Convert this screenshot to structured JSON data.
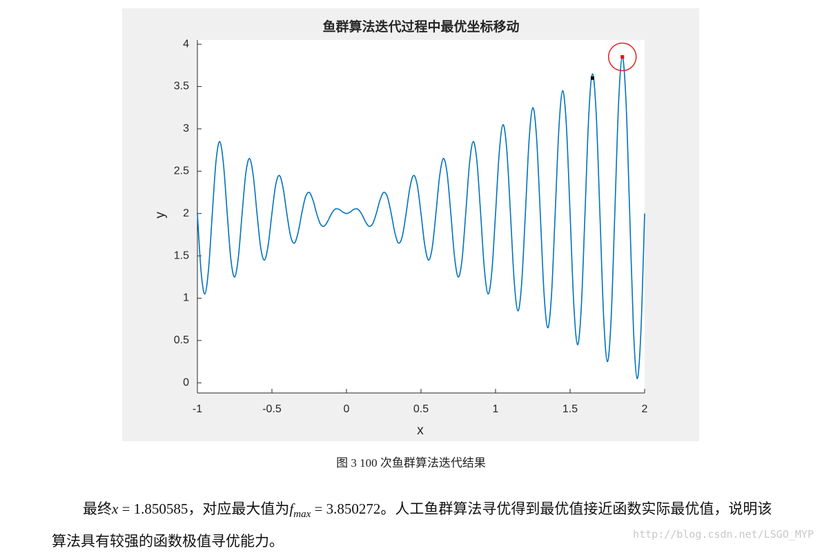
{
  "chart_data": {
    "type": "line",
    "title": "鱼群算法迭代过程中最优坐标移动",
    "x_label": "x",
    "y_label": "y",
    "xlim": [
      -1,
      2
    ],
    "ylim": [
      -0.12,
      4.05
    ],
    "xticks": [
      -1,
      -0.5,
      0,
      0.5,
      1,
      1.5,
      2
    ],
    "yticks": [
      0,
      0.5,
      1,
      1.5,
      2,
      2.5,
      3,
      3.5,
      4
    ],
    "series": [
      {
        "color": "#0072bd",
        "x": [
          -1,
          -0.975,
          -0.95,
          -0.925,
          -0.9,
          -0.875,
          -0.85,
          -0.825,
          -0.8,
          -0.775,
          -0.75,
          -0.725,
          -0.7,
          -0.675,
          -0.65,
          -0.625,
          -0.6,
          -0.575,
          -0.55,
          -0.525,
          -0.5,
          -0.475,
          -0.45,
          -0.425,
          -0.4,
          -0.375,
          -0.35,
          -0.325,
          -0.3,
          -0.275,
          -0.25,
          -0.225,
          -0.2,
          -0.175,
          -0.15,
          -0.125,
          -0.1,
          -0.075,
          -0.05,
          -0.025,
          0,
          0.025,
          0.05,
          0.075,
          0.1,
          0.125,
          0.15,
          0.175,
          0.2,
          0.225,
          0.25,
          0.275,
          0.3,
          0.325,
          0.35,
          0.375,
          0.4,
          0.425,
          0.45,
          0.475,
          0.5,
          0.525,
          0.55,
          0.575,
          0.6,
          0.625,
          0.65,
          0.675,
          0.7,
          0.725,
          0.75,
          0.775,
          0.8,
          0.825,
          0.85,
          0.875,
          0.9,
          0.925,
          0.95,
          0.975,
          1,
          1.025,
          1.05,
          1.075,
          1.1,
          1.125,
          1.15,
          1.175,
          1.2,
          1.225,
          1.25,
          1.275,
          1.3,
          1.325,
          1.35,
          1.375,
          1.4,
          1.425,
          1.45,
          1.475,
          1.5,
          1.525,
          1.55,
          1.575,
          1.6,
          1.625,
          1.65,
          1.675,
          1.7,
          1.725,
          1.75,
          1.775,
          1.8,
          1.825,
          1.85,
          1.875,
          1.9,
          1.925,
          1.95,
          1.975,
          2
        ],
        "values": [
          2,
          1.3106,
          1.05,
          1.3459,
          2,
          2.6187,
          2.85,
          2.5834,
          2,
          1.452,
          1.25,
          1.4873,
          2,
          2.4773,
          2.65,
          2.4419,
          2,
          1.5934,
          1.45,
          1.6288,
          2,
          2.3359,
          2.45,
          2.3005,
          2,
          1.7348,
          1.65,
          1.7702,
          2,
          2.1945,
          2.25,
          2.1591,
          2,
          1.8763,
          1.85,
          1.9116,
          2,
          2.053,
          2.05,
          2.0177,
          2,
          2.0177,
          2.05,
          2.053,
          2,
          1.9116,
          1.85,
          1.8763,
          2,
          2.1591,
          2.25,
          2.1945,
          2,
          1.7702,
          1.65,
          1.7348,
          2,
          2.3005,
          2.45,
          2.3359,
          2,
          1.6288,
          1.45,
          1.5934,
          2,
          2.4419,
          2.65,
          2.4773,
          2,
          1.4873,
          1.25,
          1.452,
          2,
          2.5834,
          2.85,
          2.6187,
          2,
          1.3459,
          1.05,
          1.3106,
          2,
          2.7248,
          3.05,
          2.7601,
          2,
          1.2045,
          0.85,
          1.1692,
          2,
          2.8662,
          3.25,
          2.9016,
          2,
          1.0631,
          0.65,
          1.0277,
          2,
          3.0076,
          3.45,
          3.043,
          2,
          0.9217,
          0.45,
          0.8863,
          2,
          3.149,
          3.65,
          3.1844,
          2,
          0.7802,
          0.25,
          0.7449,
          2,
          3.2905,
          3.85,
          3.3258,
          2,
          0.6388,
          0.05,
          0.6035,
          2
        ]
      }
    ],
    "points": {
      "x": [
        1.65,
        1.850585
      ],
      "values": [
        3.6,
        3.850272
      ],
      "colors": [
        "#000000",
        "#ff0000"
      ]
    },
    "highlight_color": "#e02020"
  },
  "caption": "图 3 100 次鱼群算法迭代结果",
  "paragraph": {
    "t1": "最终",
    "x_var": "x",
    "t2": " = 1.850585，对应最大值为",
    "f_var": "f",
    "f_sub": "max",
    "t3": " = 3.850272。人工鱼群算法寻优得到最优值接近函数实际最优值，说明该算法具有较强的函数极值寻优能力。"
  },
  "watermark": "http://blog.csdn.net/LSGO_MYP"
}
